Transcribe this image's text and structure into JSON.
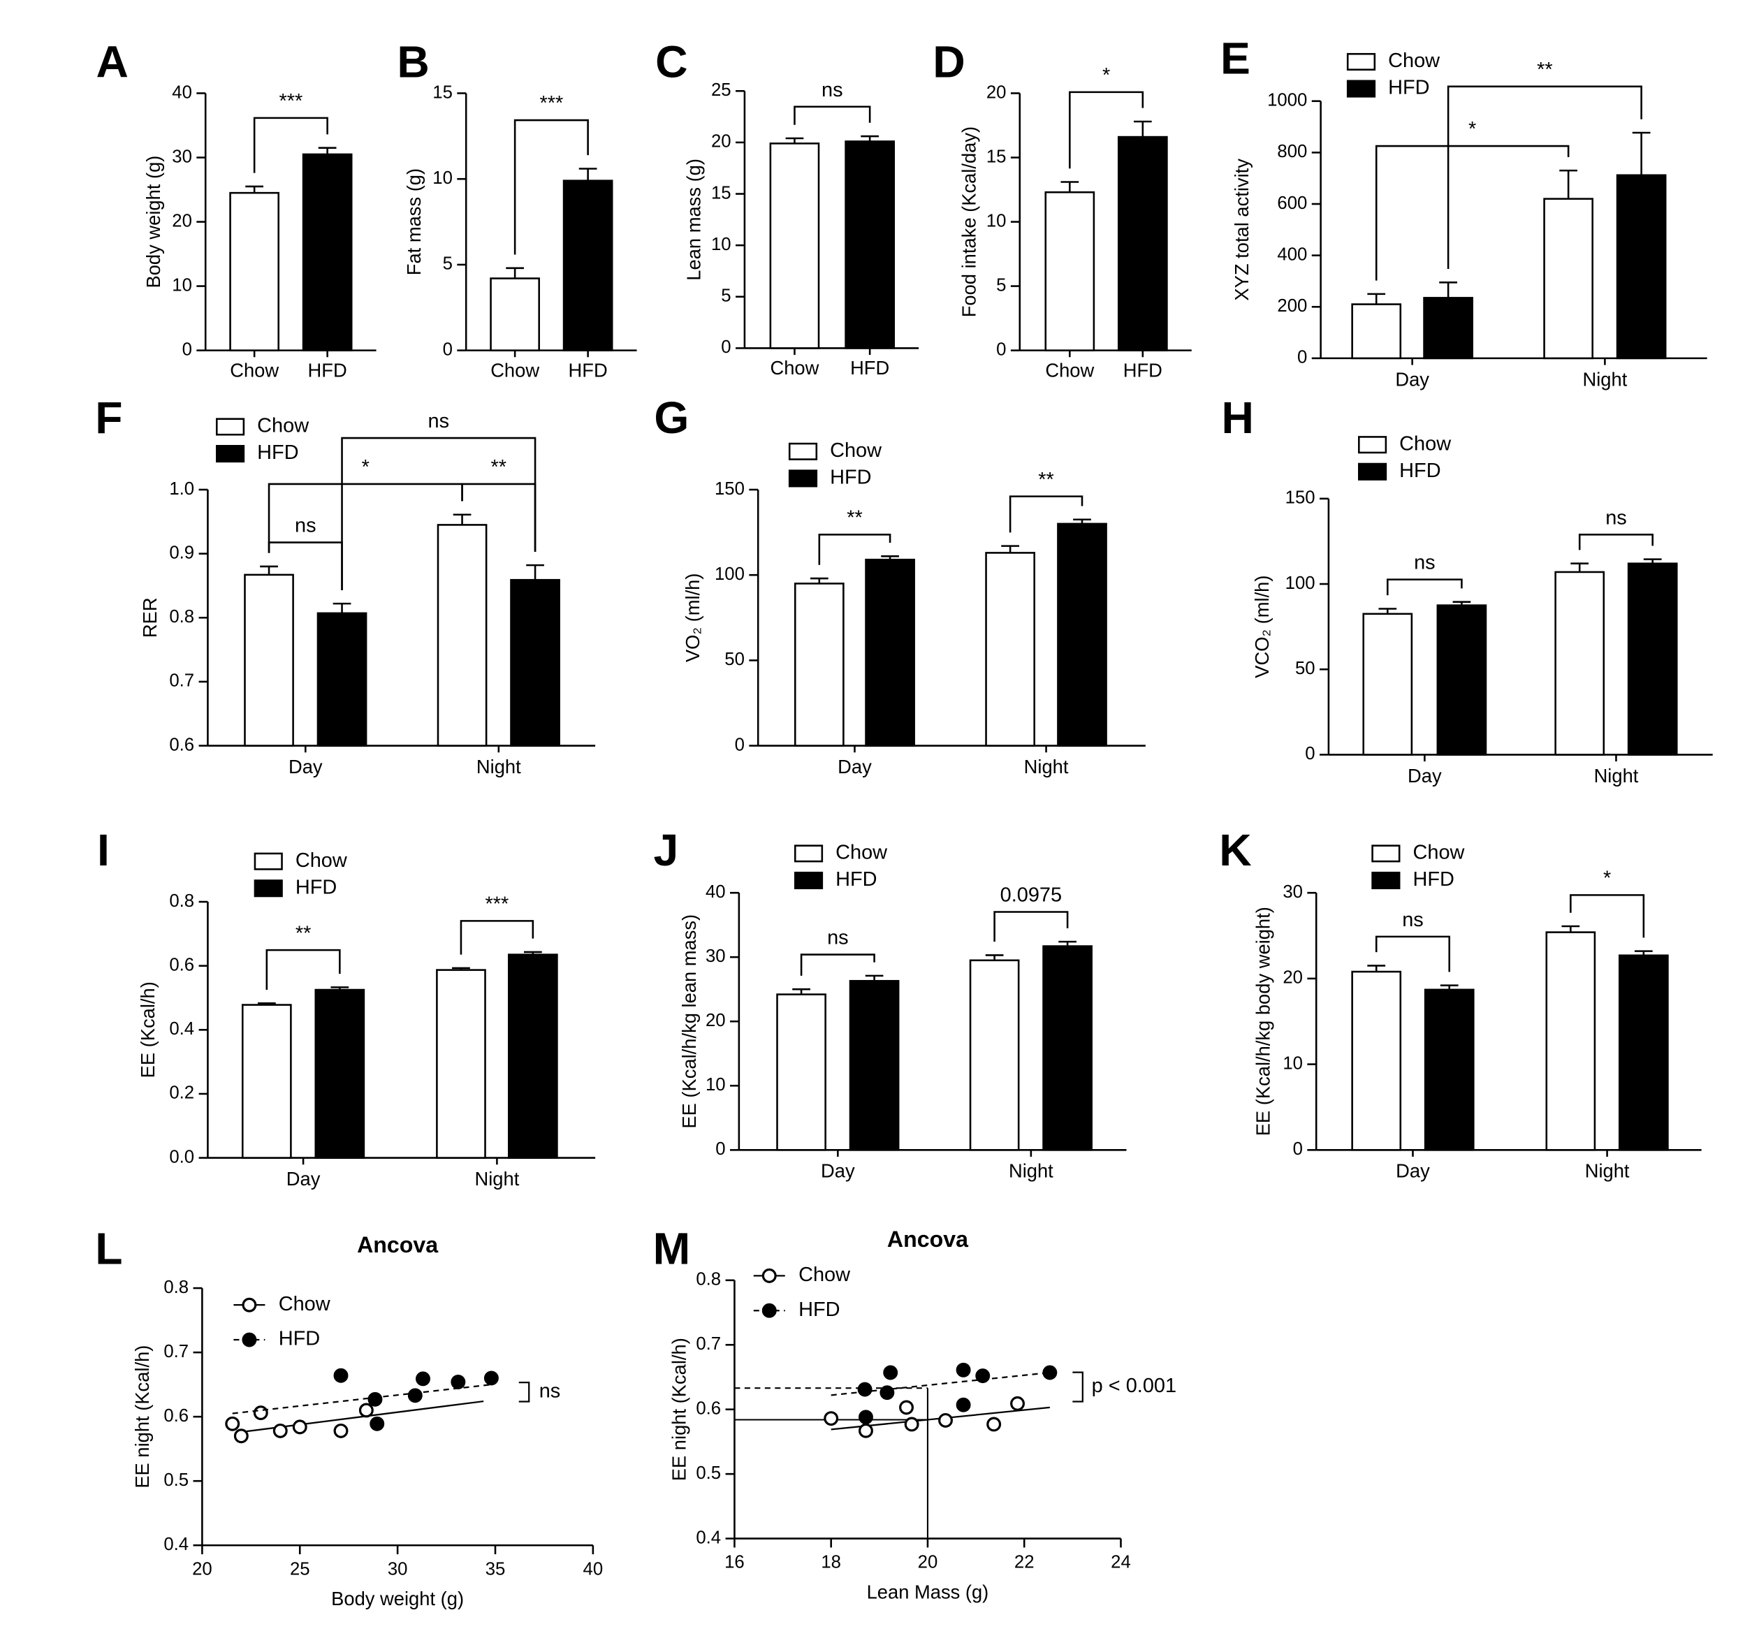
{
  "chart_data": [
    {
      "panel": "A",
      "type": "bar",
      "ylabel": "Body weight (g)",
      "categories": [
        "Chow",
        "HFD"
      ],
      "values": [
        24.5,
        30.5
      ],
      "errors": [
        1,
        1
      ],
      "colors": [
        "#ffffff",
        "#000000"
      ],
      "ylim": [
        0,
        40
      ],
      "yticks": [
        0,
        10,
        20,
        30,
        40
      ],
      "annotations": [
        "***"
      ]
    },
    {
      "panel": "B",
      "type": "bar",
      "ylabel": "Fat mass (g)",
      "categories": [
        "Chow",
        "HFD"
      ],
      "values": [
        4.2,
        9.9
      ],
      "errors": [
        0.6,
        0.7
      ],
      "colors": [
        "#ffffff",
        "#000000"
      ],
      "ylim": [
        0,
        15
      ],
      "yticks": [
        0,
        5,
        10,
        15
      ],
      "annotations": [
        "***"
      ]
    },
    {
      "panel": "C",
      "type": "bar",
      "ylabel": "Lean mass (g)",
      "categories": [
        "Chow",
        "HFD"
      ],
      "values": [
        19.9,
        20.1
      ],
      "errors": [
        0.5,
        0.5
      ],
      "colors": [
        "#ffffff",
        "#000000"
      ],
      "ylim": [
        0,
        25
      ],
      "yticks": [
        0,
        5,
        10,
        15,
        20,
        25
      ],
      "annotations": [
        "ns"
      ]
    },
    {
      "panel": "D",
      "type": "bar",
      "ylabel": "Food intake (Kcal/day)",
      "categories": [
        "Chow",
        "HFD"
      ],
      "values": [
        12.3,
        16.6
      ],
      "errors": [
        0.8,
        1.2
      ],
      "colors": [
        "#ffffff",
        "#000000"
      ],
      "ylim": [
        0,
        20
      ],
      "yticks": [
        0,
        5,
        10,
        15,
        20
      ],
      "annotations": [
        "*"
      ]
    },
    {
      "panel": "E",
      "type": "grouped_bar",
      "ylabel": "XYZ total activity",
      "categories": [
        "Day",
        "Night"
      ],
      "series": [
        {
          "name": "Chow",
          "color": "#ffffff",
          "values": [
            210,
            620
          ],
          "errors": [
            40,
            110
          ]
        },
        {
          "name": "HFD",
          "color": "#000000",
          "values": [
            235,
            712
          ],
          "errors": [
            60,
            165
          ]
        }
      ],
      "ylim": [
        0,
        1000
      ],
      "yticks": [
        0,
        200,
        400,
        600,
        800,
        1000
      ],
      "annotations": [
        "*",
        "**"
      ]
    },
    {
      "panel": "F",
      "type": "grouped_bar",
      "ylabel": "RER",
      "categories": [
        "Day",
        "Night"
      ],
      "series": [
        {
          "name": "Chow",
          "color": "#ffffff",
          "values": [
            0.867,
            0.945
          ],
          "errors": [
            0.013,
            0.016
          ]
        },
        {
          "name": "HFD",
          "color": "#000000",
          "values": [
            0.807,
            0.859
          ],
          "errors": [
            0.015,
            0.023
          ]
        }
      ],
      "ylim": [
        0.6,
        1.0
      ],
      "yticks": [
        0.6,
        0.7,
        0.8,
        0.9,
        {
          "value": 1,
          "label": "1.0"
        }
      ],
      "annotations": [
        "ns",
        "*",
        "**",
        "ns"
      ]
    },
    {
      "panel": "G",
      "type": "grouped_bar",
      "ylabel": "VO₂ (ml/h)",
      "categories": [
        "Day",
        "Night"
      ],
      "series": [
        {
          "name": "Chow",
          "color": "#ffffff",
          "values": [
            95,
            113
          ],
          "errors": [
            3,
            4
          ]
        },
        {
          "name": "HFD",
          "color": "#000000",
          "values": [
            109,
            130
          ],
          "errors": [
            2,
            2.5
          ]
        }
      ],
      "ylim": [
        0,
        150
      ],
      "yticks": [
        0,
        50,
        100,
        150
      ],
      "annotations": [
        "**",
        "**"
      ]
    },
    {
      "panel": "H",
      "type": "grouped_bar",
      "ylabel": "VCO₂ (ml/h)",
      "categories": [
        "Day",
        "Night"
      ],
      "series": [
        {
          "name": "Chow",
          "color": "#ffffff",
          "values": [
            82.5,
            107
          ],
          "errors": [
            3,
            5
          ]
        },
        {
          "name": "HFD",
          "color": "#000000",
          "values": [
            87.5,
            112
          ],
          "errors": [
            2,
            2.5
          ]
        }
      ],
      "ylim": [
        0,
        150
      ],
      "yticks": [
        0,
        50,
        100,
        150
      ],
      "annotations": [
        "ns",
        "ns"
      ]
    },
    {
      "panel": "I",
      "type": "grouped_bar",
      "ylabel": "EE (Kcal/h)",
      "categories": [
        "Day",
        "Night"
      ],
      "series": [
        {
          "name": "Chow",
          "color": "#ffffff",
          "values": [
            0.478,
            0.587
          ],
          "errors": [
            0.005,
            0.006
          ]
        },
        {
          "name": "HFD",
          "color": "#000000",
          "values": [
            0.525,
            0.635
          ],
          "errors": [
            0.008,
            0.008
          ]
        }
      ],
      "ylim": [
        0,
        0.8
      ],
      "yticks": [
        {
          "value": 0,
          "label": "0.0"
        },
        0.2,
        0.4,
        0.6,
        0.8
      ],
      "annotations": [
        "**",
        "***"
      ]
    },
    {
      "panel": "J",
      "type": "grouped_bar",
      "ylabel": "EE (Kcal/h/kg lean mass)",
      "categories": [
        "Day",
        "Night"
      ],
      "series": [
        {
          "name": "Chow",
          "color": "#ffffff",
          "values": [
            24.2,
            29.5
          ],
          "errors": [
            0.8,
            0.8
          ]
        },
        {
          "name": "HFD",
          "color": "#000000",
          "values": [
            26.3,
            31.7
          ],
          "errors": [
            0.8,
            0.7
          ]
        }
      ],
      "ylim": [
        0,
        40
      ],
      "yticks": [
        0,
        10,
        20,
        30,
        40
      ],
      "annotations": [
        "ns",
        "0.0975"
      ]
    },
    {
      "panel": "K",
      "type": "grouped_bar",
      "ylabel": "EE (Kcal/h/kg body weight)",
      "categories": [
        "Day",
        "Night"
      ],
      "series": [
        {
          "name": "Chow",
          "color": "#ffffff",
          "values": [
            20.8,
            25.4
          ],
          "errors": [
            0.7,
            0.7
          ]
        },
        {
          "name": "HFD",
          "color": "#000000",
          "values": [
            18.7,
            22.7
          ],
          "errors": [
            0.5,
            0.5
          ]
        }
      ],
      "ylim": [
        0,
        30
      ],
      "yticks": [
        0,
        10,
        20,
        30
      ],
      "annotations": [
        "ns",
        "*"
      ]
    },
    {
      "panel": "L",
      "type": "scatter",
      "title": "Ancova",
      "xlabel": "Body weight (g)",
      "ylabel": "EE night (Kcal/h)",
      "xlim": [
        20,
        40
      ],
      "xticks": [
        20,
        25,
        30,
        35,
        40
      ],
      "ylim": [
        0.4,
        0.8
      ],
      "yticks": [
        0.4,
        0.5,
        0.6,
        0.7,
        0.8
      ],
      "annotation": "ns",
      "series": [
        {
          "name": "Chow",
          "color": "#ffffff",
          "line_style": "solid",
          "x": [
            21.55,
            22.0,
            23.0,
            24.0,
            25.0,
            27.1,
            28.4
          ],
          "y": [
            0.589,
            0.57,
            0.606,
            0.578,
            0.584,
            0.578,
            0.61
          ],
          "fit": {
            "x": [
              21.7,
              34.4
            ],
            "y": [
              0.575,
              0.624
            ]
          }
        },
        {
          "name": "HFD",
          "color": "#000000",
          "line_style": "dashed",
          "x": [
            27.1,
            28.85,
            28.95,
            30.9,
            31.3,
            33.1,
            34.8
          ],
          "y": [
            0.664,
            0.627,
            0.589,
            0.633,
            0.659,
            0.654,
            0.66
          ],
          "fit": {
            "x": [
              21.55,
              34.8
            ],
            "y": [
              0.605,
              0.65
            ]
          }
        }
      ]
    },
    {
      "panel": "M",
      "type": "scatter",
      "title": "Ancova",
      "xlabel": "Lean Mass (g)",
      "ylabel": "EE night (Kcal/h)",
      "xlim": [
        16,
        24
      ],
      "xticks": [
        16,
        18,
        20,
        22,
        24
      ],
      "ylim": [
        0.4,
        0.8
      ],
      "yticks": [
        0.4,
        0.5,
        0.6,
        0.7,
        0.8
      ],
      "annotation": "p < 0.001",
      "reference_x": 20,
      "series": [
        {
          "name": "Chow",
          "color": "#ffffff",
          "line_style": "solid",
          "x": [
            18.0,
            18.72,
            19.56,
            19.67,
            20.37,
            21.37,
            21.86
          ],
          "y": [
            0.586,
            0.567,
            0.603,
            0.577,
            0.583,
            0.577,
            0.609
          ],
          "fit": {
            "x": [
              18.0,
              22.53
            ],
            "y": [
              0.569,
              0.603
            ]
          },
          "adjusted_mean": 0.584
        },
        {
          "name": "HFD",
          "color": "#000000",
          "line_style": "dashed",
          "x": [
            18.7,
            18.72,
            19.16,
            19.23,
            20.74,
            20.74,
            21.14,
            22.53
          ],
          "y": [
            0.631,
            0.588,
            0.626,
            0.657,
            0.607,
            0.661,
            0.652,
            0.657
          ],
          "fit": {
            "x": [
              18.0,
              22.53
            ],
            "y": [
              0.622,
              0.657
            ]
          },
          "adjusted_mean": 0.633
        }
      ]
    }
  ]
}
